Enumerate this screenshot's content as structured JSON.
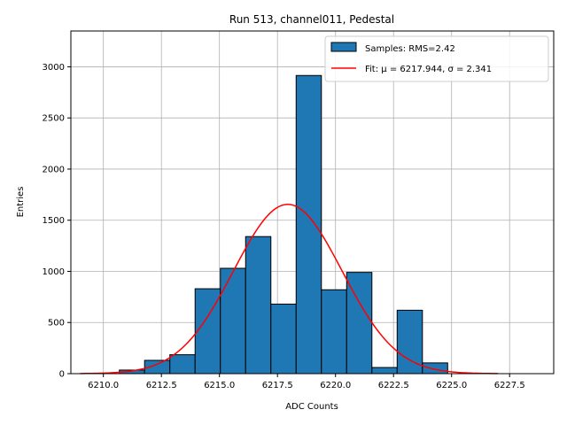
{
  "chart_data": {
    "type": "bar",
    "title": "Run 513, channel011, Pedestal",
    "xlabel": "ADC Counts",
    "ylabel": "Entries",
    "xlim": [
      6208.6,
      6229.4
    ],
    "ylim": [
      0,
      3350
    ],
    "xticks": [
      6210.0,
      6212.5,
      6215.0,
      6217.5,
      6220.0,
      6222.5,
      6225.0,
      6227.5
    ],
    "xtick_labels": [
      "6210.0",
      "6212.5",
      "6215.0",
      "6217.5",
      "6220.0",
      "6222.5",
      "6225.0",
      "6227.5"
    ],
    "yticks": [
      0,
      500,
      1000,
      1500,
      2000,
      2500,
      3000
    ],
    "ytick_labels": [
      "0",
      "500",
      "1000",
      "1500",
      "2000",
      "2500",
      "3000"
    ],
    "grid": true,
    "legend_position": "top-right",
    "bin_width": 1.088,
    "bins": [
      {
        "x0": 6209.6,
        "value": 0
      },
      {
        "x0": 6210.688,
        "value": 35
      },
      {
        "x0": 6211.776,
        "value": 130
      },
      {
        "x0": 6212.864,
        "value": 185
      },
      {
        "x0": 6213.952,
        "value": 830
      },
      {
        "x0": 6215.04,
        "value": 1030
      },
      {
        "x0": 6216.128,
        "value": 1340
      },
      {
        "x0": 6217.216,
        "value": 680
      },
      {
        "x0": 6218.304,
        "value": 2915
      },
      {
        "x0": 6219.392,
        "value": 820
      },
      {
        "x0": 6220.48,
        "value": 990
      },
      {
        "x0": 6221.568,
        "value": 60
      },
      {
        "x0": 6222.656,
        "value": 620
      },
      {
        "x0": 6223.744,
        "value": 105
      },
      {
        "x0": 6224.832,
        "value": 0
      },
      {
        "x0": 6225.92,
        "value": 0
      },
      {
        "x0": 6227.008,
        "value": 0
      }
    ],
    "series": [
      {
        "name": "Samples: RMS=2.42",
        "kind": "histogram",
        "color": "#1f77b4",
        "edge_color": "#000000"
      },
      {
        "name": "Fit: μ = 6217.944, σ = 2.341",
        "kind": "gaussian_fit",
        "color": "#ff0000",
        "mu": 6217.944,
        "sigma": 2.341,
        "amplitude": 1655,
        "x_range": [
          6209.0,
          6227.0
        ]
      }
    ]
  }
}
